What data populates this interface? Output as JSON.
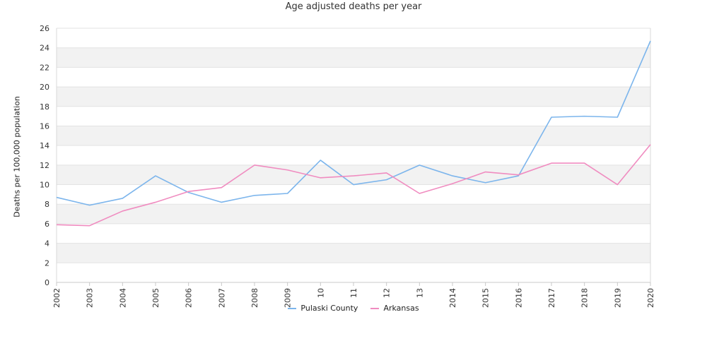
{
  "chart_data": {
    "type": "line",
    "title": "Age adjusted deaths per year",
    "xlabel": "",
    "ylabel": "Deaths per 100,000 population",
    "x": [
      "2002",
      "2003",
      "2004",
      "2005",
      "2006",
      "2007",
      "2008",
      "2009",
      "2010",
      "2011",
      "2012",
      "2013",
      "2014",
      "2015",
      "2016",
      "2017",
      "2018",
      "2019",
      "2020"
    ],
    "x_tick_labels": [
      "2002",
      "2003",
      "2004",
      "2005",
      "2006",
      "2007",
      "2008",
      "2009",
      "10",
      "11",
      "12",
      "13",
      "2014",
      "2015",
      "2016",
      "2017",
      "2018",
      "2019",
      "2020"
    ],
    "ylim": [
      0,
      26
    ],
    "y_ticks": [
      0,
      2,
      4,
      6,
      8,
      10,
      12,
      14,
      16,
      18,
      20,
      22,
      24,
      26
    ],
    "grid": "horizontal alternating bands",
    "legend": "bottom-center",
    "series": [
      {
        "name": "Pulaski County",
        "color": "#7cb5ec",
        "values": [
          8.7,
          7.9,
          8.6,
          10.9,
          9.2,
          8.2,
          8.9,
          9.1,
          12.5,
          10.0,
          10.5,
          12.0,
          10.9,
          10.2,
          10.9,
          16.9,
          17.0,
          16.9,
          24.7
        ]
      },
      {
        "name": "Arkansas",
        "color": "#f08cc0",
        "values": [
          5.9,
          5.8,
          7.3,
          8.2,
          9.3,
          9.7,
          12.0,
          11.5,
          10.7,
          10.9,
          11.2,
          9.1,
          10.1,
          11.3,
          11.0,
          12.2,
          12.2,
          10.0,
          14.1
        ]
      }
    ]
  }
}
